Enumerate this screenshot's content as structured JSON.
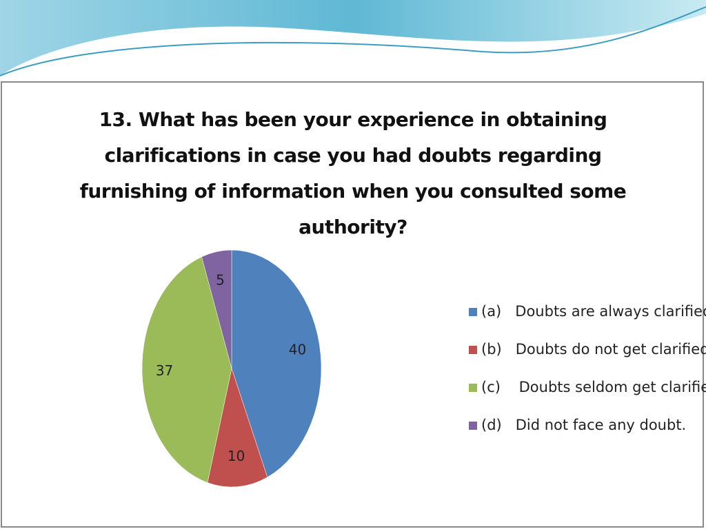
{
  "chart_data": {
    "type": "pie",
    "title": "13.  What has been your experience in obtaining clarifications in case you had doubts regarding furnishing of information when you consulted some authority?",
    "categories": [
      "(a)   Doubts are always clarified",
      "(b)   Doubts do not get clarified,",
      "(c)    Doubts seldom get clarified,",
      "(d)   Did not face any doubt."
    ],
    "values": [
      40,
      10,
      37,
      5
    ],
    "colors": [
      "#4f81bd",
      "#c0504d",
      "#9bbb59",
      "#8064a2"
    ],
    "legend": "right"
  }
}
